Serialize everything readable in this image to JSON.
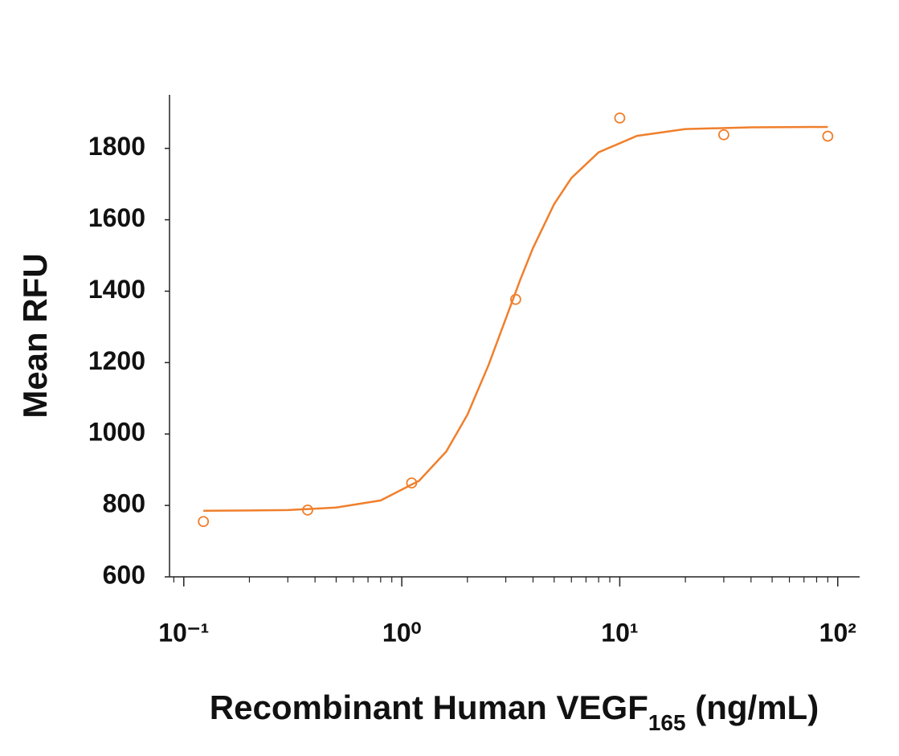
{
  "chart_data": {
    "type": "scatter",
    "xlabel": {
      "text": "Recombinant Human VEGF",
      "sub": "165",
      "suffix": " (ng/mL)"
    },
    "ylabel": "Mean RFU",
    "xscale": "log",
    "xlim": [
      0.086,
      126
    ],
    "ylim": [
      600,
      1950
    ],
    "xticks": [
      {
        "value": 0.1,
        "label": "10⁻¹"
      },
      {
        "value": 1,
        "label": "10⁰"
      },
      {
        "value": 10,
        "label": "10¹"
      },
      {
        "value": 100,
        "label": "10²"
      }
    ],
    "xminorticks": [
      0.09,
      0.2,
      0.3,
      0.4,
      0.5,
      0.6,
      0.7,
      0.8,
      0.9,
      2,
      3,
      4,
      5,
      6,
      7,
      8,
      9,
      20,
      30,
      40,
      50,
      60,
      70,
      80,
      90
    ],
    "yticks": [
      600,
      800,
      1000,
      1200,
      1400,
      1600,
      1800
    ],
    "color": "#f07f2c",
    "x": [
      0.123,
      0.37,
      1.11,
      3.33,
      10,
      30,
      90
    ],
    "values": [
      755,
      787,
      863,
      1377,
      1885,
      1838,
      1834
    ],
    "fit": {
      "x": [
        0.123,
        0.2,
        0.3,
        0.5,
        0.8,
        1.2,
        1.6,
        2,
        2.5,
        3,
        3.5,
        4,
        5,
        6,
        8,
        12,
        20,
        40,
        90
      ],
      "values": [
        785,
        786,
        787,
        794,
        814,
        869,
        951,
        1054,
        1193,
        1323,
        1433,
        1521,
        1644,
        1717,
        1789,
        1835,
        1854,
        1859,
        1860
      ]
    }
  }
}
